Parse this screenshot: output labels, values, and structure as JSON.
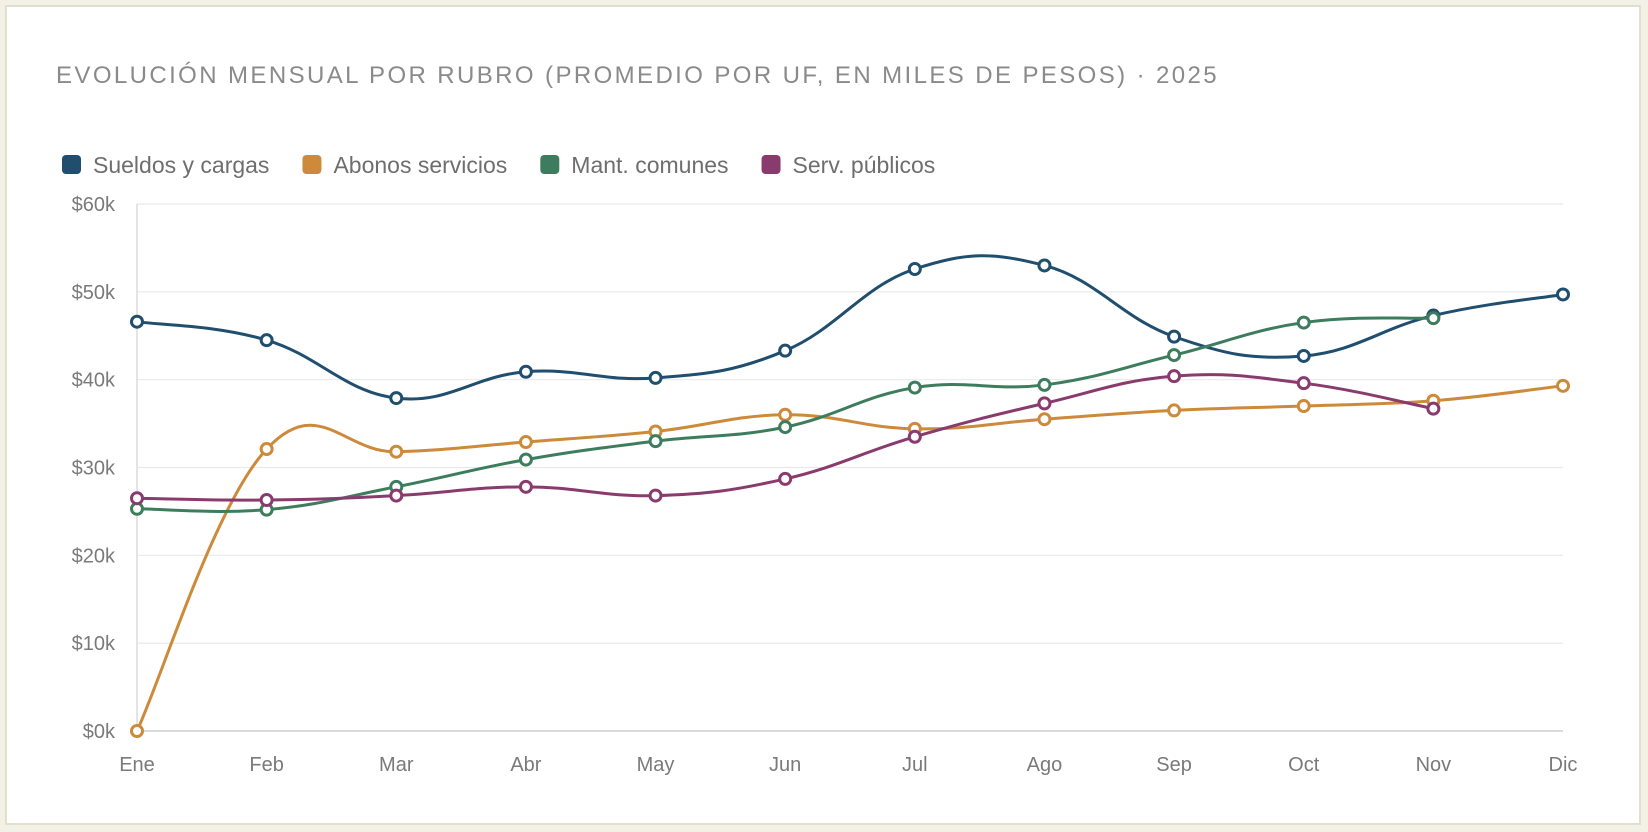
{
  "chart_data": {
    "type": "line",
    "title": "EVOLUCIÓN MENSUAL POR RUBRO (PROMEDIO POR UF, EN MILES DE PESOS) · 2025",
    "xlabel": "",
    "ylabel": "",
    "categories": [
      "Ene",
      "Feb",
      "Mar",
      "Abr",
      "May",
      "Jun",
      "Jul",
      "Ago",
      "Sep",
      "Oct",
      "Nov",
      "Dic"
    ],
    "y_ticks": [
      "$0k",
      "$10k",
      "$20k",
      "$30k",
      "$40k",
      "$50k",
      "$60k"
    ],
    "ylim": [
      0,
      60
    ],
    "grid": true,
    "legend_position": "top-left",
    "series": [
      {
        "name": "Sueldos y cargas",
        "color": "#1f4e6e",
        "values": [
          46.6,
          44.5,
          37.9,
          40.9,
          40.2,
          43.3,
          52.6,
          53.0,
          44.9,
          42.7,
          47.3,
          49.7
        ]
      },
      {
        "name": "Abonos servicios",
        "color": "#cc8a3a",
        "values": [
          0,
          32.1,
          31.8,
          32.9,
          34.1,
          36.0,
          34.4,
          35.5,
          36.5,
          37.0,
          37.6,
          39.3
        ]
      },
      {
        "name": "Mant. comunes",
        "color": "#3d7d5e",
        "values": [
          25.3,
          25.2,
          27.8,
          30.9,
          33.0,
          34.6,
          39.1,
          39.4,
          42.8,
          46.5,
          47.0,
          null
        ]
      },
      {
        "name": "Serv. públicos",
        "color": "#8a3b6e",
        "values": [
          26.5,
          26.3,
          26.8,
          27.8,
          26.8,
          28.7,
          33.5,
          37.3,
          40.4,
          39.6,
          36.7,
          null
        ]
      }
    ]
  }
}
